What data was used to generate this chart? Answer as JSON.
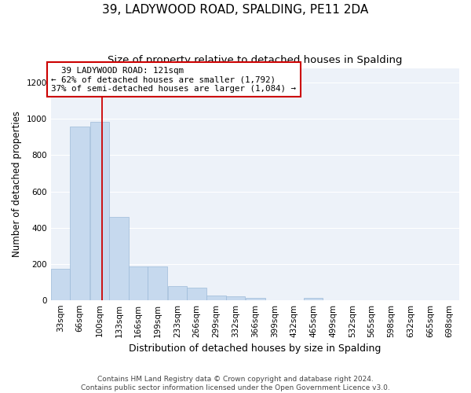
{
  "title": "39, LADYWOOD ROAD, SPALDING, PE11 2DA",
  "subtitle": "Size of property relative to detached houses in Spalding",
  "xlabel": "Distribution of detached houses by size in Spalding",
  "ylabel": "Number of detached properties",
  "bar_color": "#c6d9ee",
  "bar_edge_color": "#9dbad9",
  "background_color": "#edf2f9",
  "grid_color": "#ffffff",
  "annotation_box_color": "#cc0000",
  "annotation_line_color": "#cc0000",
  "property_line_x": 121,
  "annotation_text": "  39 LADYWOOD ROAD: 121sqm\n← 62% of detached houses are smaller (1,792)\n37% of semi-detached houses are larger (1,084) →",
  "categories": [
    "33sqm",
    "66sqm",
    "100sqm",
    "133sqm",
    "166sqm",
    "199sqm",
    "233sqm",
    "266sqm",
    "299sqm",
    "332sqm",
    "366sqm",
    "399sqm",
    "432sqm",
    "465sqm",
    "499sqm",
    "532sqm",
    "565sqm",
    "598sqm",
    "632sqm",
    "665sqm",
    "698sqm"
  ],
  "bin_left_edges": [
    33,
    66,
    100,
    133,
    166,
    199,
    233,
    266,
    299,
    332,
    366,
    399,
    432,
    465,
    499,
    532,
    565,
    598,
    632,
    665,
    698
  ],
  "bin_width": 33,
  "values": [
    172,
    960,
    985,
    460,
    187,
    187,
    75,
    70,
    25,
    20,
    12,
    0,
    0,
    12,
    0,
    0,
    0,
    0,
    0,
    0,
    0
  ],
  "ylim": [
    0,
    1280
  ],
  "yticks": [
    0,
    200,
    400,
    600,
    800,
    1000,
    1200
  ],
  "footer_text": "Contains HM Land Registry data © Crown copyright and database right 2024.\nContains public sector information licensed under the Open Government Licence v3.0.",
  "title_fontsize": 11,
  "subtitle_fontsize": 9.5,
  "ylabel_fontsize": 8.5,
  "xlabel_fontsize": 9,
  "tick_fontsize": 7.5,
  "footer_fontsize": 6.5
}
